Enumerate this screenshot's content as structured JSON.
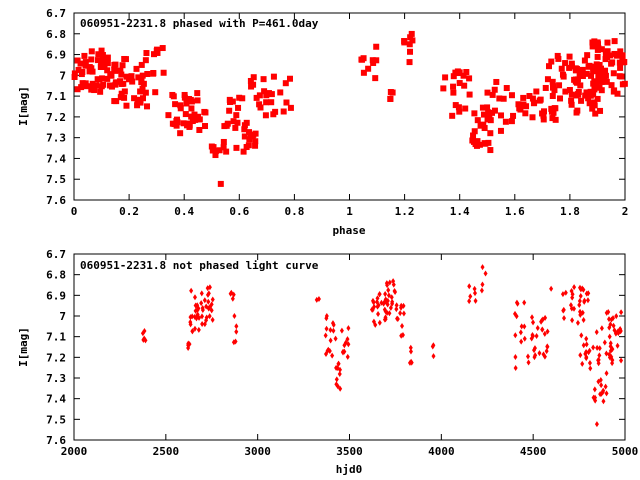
{
  "colors": {
    "points": "#ff0000",
    "frame": "#000000",
    "background": "#ffffff"
  },
  "chart_data": [
    {
      "type": "scatter",
      "title": "060951-2231.8 phased with P=461.0day",
      "xlabel": "phase",
      "ylabel": "I[mag]",
      "xlim": [
        0,
        2
      ],
      "ylim": [
        7.6,
        6.7
      ],
      "y_inverted": true,
      "xticks": [
        "0",
        "0.2",
        "0.4",
        "0.6",
        "0.8",
        "1",
        "1.2",
        "1.4",
        "1.6",
        "1.8",
        "2"
      ],
      "yticks": [
        "6.7",
        "6.8",
        "6.9",
        "7",
        "7.1",
        "7.2",
        "7.3",
        "7.4",
        "7.5",
        "7.6"
      ],
      "marker": "filled-square",
      "grid": false,
      "clusters": [
        {
          "x": [
            0.0,
            0.15
          ],
          "y": [
            6.88,
            7.08
          ],
          "n": 55
        },
        {
          "x": [
            0.13,
            0.3
          ],
          "y": [
            6.92,
            7.15
          ],
          "n": 45
        },
        {
          "x": [
            0.26,
            0.33
          ],
          "y": [
            6.82,
            7.0
          ],
          "n": 8
        },
        {
          "x": [
            0.34,
            0.45
          ],
          "y": [
            7.08,
            7.25
          ],
          "n": 25
        },
        {
          "x": [
            0.38,
            0.5
          ],
          "y": [
            7.1,
            7.28
          ],
          "n": 15
        },
        {
          "x": [
            0.48,
            0.53
          ],
          "y": [
            7.3,
            7.39
          ],
          "n": 6
        },
        {
          "x": [
            0.53,
            0.54
          ],
          "y": [
            7.52,
            7.53
          ],
          "n": 1
        },
        {
          "x": [
            0.54,
            0.66
          ],
          "y": [
            7.22,
            7.37
          ],
          "n": 25
        },
        {
          "x": [
            0.56,
            0.62
          ],
          "y": [
            7.1,
            7.2
          ],
          "n": 8
        },
        {
          "x": [
            0.64,
            0.8
          ],
          "y": [
            7.0,
            7.2
          ],
          "n": 25
        },
        {
          "x": [
            1.02,
            1.1
          ],
          "y": [
            6.84,
            7.02
          ],
          "n": 10
        },
        {
          "x": [
            1.14,
            1.2
          ],
          "y": [
            7.08,
            7.12
          ],
          "n": 4
        },
        {
          "x": [
            1.19,
            1.23
          ],
          "y": [
            6.76,
            6.95
          ],
          "n": 8
        },
        {
          "x": [
            1.34,
            1.44
          ],
          "y": [
            6.98,
            7.2
          ],
          "n": 20
        },
        {
          "x": [
            1.44,
            1.52
          ],
          "y": [
            7.15,
            7.36
          ],
          "n": 25
        },
        {
          "x": [
            1.5,
            1.6
          ],
          "y": [
            7.0,
            7.27
          ],
          "n": 15
        },
        {
          "x": [
            1.6,
            1.75
          ],
          "y": [
            7.05,
            7.22
          ],
          "n": 30
        },
        {
          "x": [
            1.72,
            1.88
          ],
          "y": [
            6.9,
            7.15
          ],
          "n": 40
        },
        {
          "x": [
            1.82,
            1.94
          ],
          "y": [
            6.95,
            7.2
          ],
          "n": 30
        },
        {
          "x": [
            1.88,
            2.0
          ],
          "y": [
            6.83,
            7.1
          ],
          "n": 55
        }
      ]
    },
    {
      "type": "scatter",
      "title": "060951-2231.8 not phased light curve",
      "xlabel": "hjd0",
      "ylabel": "I[mag]",
      "xlim": [
        2000,
        5000
      ],
      "ylim": [
        7.6,
        6.7
      ],
      "y_inverted": true,
      "xticks": [
        "2000",
        "2500",
        "3000",
        "3500",
        "4000",
        "4500",
        "5000"
      ],
      "yticks": [
        "6.7",
        "6.8",
        "6.9",
        "7",
        "7.1",
        "7.2",
        "7.3",
        "7.4",
        "7.5",
        "7.6"
      ],
      "marker": "small-diamond",
      "grid": false,
      "clusters": [
        {
          "x": [
            2360,
            2390
          ],
          "y": [
            7.07,
            7.12
          ],
          "n": 5
        },
        {
          "x": [
            2610,
            2630
          ],
          "y": [
            7.13,
            7.17
          ],
          "n": 4
        },
        {
          "x": [
            2630,
            2700
          ],
          "y": [
            6.87,
            7.08
          ],
          "n": 25
        },
        {
          "x": [
            2700,
            2760
          ],
          "y": [
            6.85,
            7.05
          ],
          "n": 20
        },
        {
          "x": [
            2850,
            2875
          ],
          "y": [
            6.87,
            6.93
          ],
          "n": 4
        },
        {
          "x": [
            2870,
            2885
          ],
          "y": [
            7.0,
            7.15
          ],
          "n": 5
        },
        {
          "x": [
            3320,
            3335
          ],
          "y": [
            6.9,
            6.94
          ],
          "n": 2
        },
        {
          "x": [
            3370,
            3430
          ],
          "y": [
            6.98,
            7.2
          ],
          "n": 15
        },
        {
          "x": [
            3420,
            3450
          ],
          "y": [
            7.22,
            7.36
          ],
          "n": 10
        },
        {
          "x": [
            3450,
            3500
          ],
          "y": [
            7.05,
            7.22
          ],
          "n": 10
        },
        {
          "x": [
            3620,
            3700
          ],
          "y": [
            6.88,
            7.05
          ],
          "n": 25
        },
        {
          "x": [
            3700,
            3760
          ],
          "y": [
            6.83,
            7.0
          ],
          "n": 20
        },
        {
          "x": [
            3750,
            3800
          ],
          "y": [
            6.95,
            7.1
          ],
          "n": 10
        },
        {
          "x": [
            3820,
            3850
          ],
          "y": [
            7.15,
            7.25
          ],
          "n": 5
        },
        {
          "x": [
            3940,
            3960
          ],
          "y": [
            7.13,
            7.2
          ],
          "n": 3
        },
        {
          "x": [
            4150,
            4190
          ],
          "y": [
            6.85,
            6.95
          ],
          "n": 6
        },
        {
          "x": [
            4220,
            4245
          ],
          "y": [
            6.76,
            6.92
          ],
          "n": 4
        },
        {
          "x": [
            4400,
            4480
          ],
          "y": [
            6.93,
            7.27
          ],
          "n": 15
        },
        {
          "x": [
            4480,
            4580
          ],
          "y": [
            7.0,
            7.2
          ],
          "n": 25
        },
        {
          "x": [
            4580,
            4610
          ],
          "y": [
            6.86,
            6.88
          ],
          "n": 1
        },
        {
          "x": [
            4650,
            4800
          ],
          "y": [
            6.86,
            7.04
          ],
          "n": 30
        },
        {
          "x": [
            4750,
            4800
          ],
          "y": [
            7.05,
            7.25
          ],
          "n": 10
        },
        {
          "x": [
            4800,
            4900
          ],
          "y": [
            7.05,
            7.45
          ],
          "n": 30
        },
        {
          "x": [
            4840,
            4850
          ],
          "y": [
            7.52,
            7.53
          ],
          "n": 1
        },
        {
          "x": [
            4900,
            4980
          ],
          "y": [
            6.98,
            7.25
          ],
          "n": 30
        }
      ]
    }
  ]
}
